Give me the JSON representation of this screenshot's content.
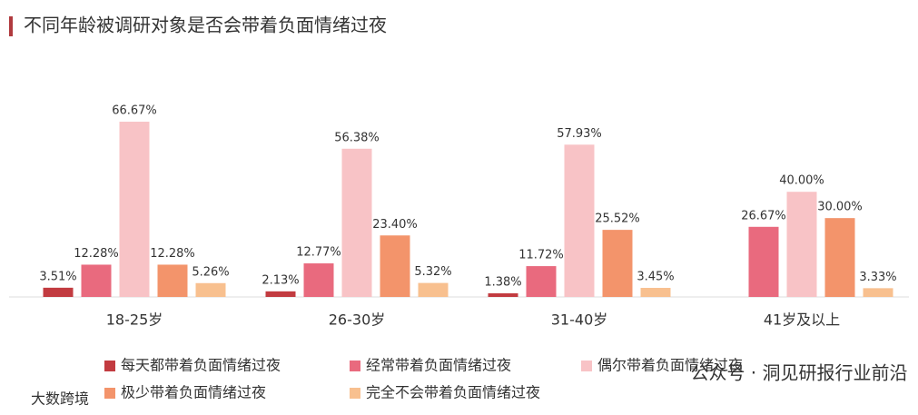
{
  "chart_data": {
    "type": "bar",
    "title": "不同年龄被调研对象是否会带着负面情绪过夜",
    "categories": [
      "18-25岁",
      "26-30岁",
      "31-40岁",
      "41岁及以上"
    ],
    "series": [
      {
        "name": "每天都带着负面情绪过夜",
        "color": "#c23b40",
        "values": [
          3.51,
          2.13,
          1.38,
          null
        ],
        "value_labels": [
          "3.51%",
          "2.13%",
          "1.38%",
          null
        ]
      },
      {
        "name": "经常带着负面情绪过夜",
        "color": "#e96a7e",
        "values": [
          12.28,
          12.77,
          11.72,
          26.67
        ],
        "value_labels": [
          "12.28%",
          "12.77%",
          "11.72%",
          "26.67%"
        ]
      },
      {
        "name": "偶尔带着负面情绪过夜",
        "color": "#f8c3c6",
        "values": [
          66.67,
          56.38,
          57.93,
          40.0
        ],
        "value_labels": [
          "66.67%",
          "56.38%",
          "57.93%",
          "40.00%"
        ]
      },
      {
        "name": "极少带着负面情绪过夜",
        "color": "#f3946b",
        "values": [
          12.28,
          23.4,
          25.52,
          30.0
        ],
        "value_labels": [
          "12.28%",
          "23.40%",
          "25.52%",
          "30.00%"
        ]
      },
      {
        "name": "完全不会带着负面情绪过夜",
        "color": "#f8c08f",
        "values": [
          5.26,
          5.32,
          3.45,
          3.33
        ],
        "value_labels": [
          "5.26%",
          "5.32%",
          "3.45%",
          "3.33%"
        ]
      }
    ],
    "watermarks": [
      "公众号 · 洞见研报行业前沿",
      "大数跨境"
    ]
  }
}
